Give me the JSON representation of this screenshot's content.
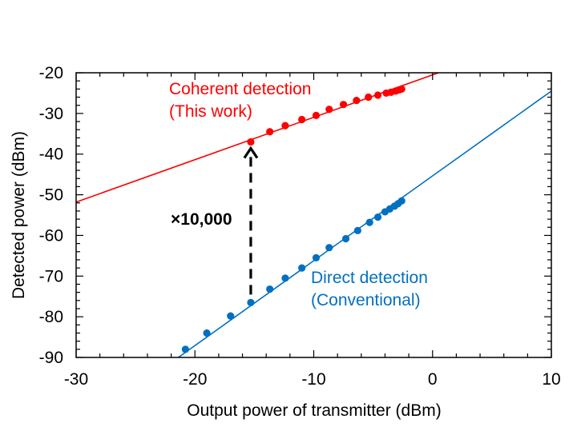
{
  "chart_data": {
    "type": "scatter",
    "xlabel": "Output power of transmitter (dBm)",
    "ylabel": "Detected power (dBm)",
    "xlim": [
      -30,
      10
    ],
    "ylim": [
      -90,
      -20
    ],
    "xticks": [
      -30,
      -20,
      -10,
      0,
      10
    ],
    "yticks": [
      -20,
      -30,
      -40,
      -50,
      -60,
      -70,
      -80,
      -90
    ],
    "grid": false,
    "series": [
      {
        "label_lines": [
          "Coherent detection",
          "(This work)"
        ],
        "color": "#ff0000",
        "fit_line": {
          "x": [
            -30,
            0.5
          ],
          "y": [
            -51.8,
            -20
          ]
        },
        "points": [
          [
            -15.3,
            -37.0
          ],
          [
            -13.7,
            -34.5
          ],
          [
            -12.4,
            -33.0
          ],
          [
            -11.0,
            -31.5
          ],
          [
            -9.8,
            -30.5
          ],
          [
            -8.7,
            -29.0
          ],
          [
            -7.5,
            -27.8
          ],
          [
            -6.4,
            -26.8
          ],
          [
            -5.4,
            -26.0
          ],
          [
            -4.6,
            -25.5
          ],
          [
            -3.9,
            -25.0
          ],
          [
            -3.5,
            -24.8
          ],
          [
            -3.1,
            -24.5
          ],
          [
            -2.8,
            -24.2
          ],
          [
            -2.6,
            -24.0
          ]
        ]
      },
      {
        "label_lines": [
          "Direct detection",
          "(Conventional)"
        ],
        "color": "#0070c0",
        "fit_line": {
          "x": [
            -21.4,
            10
          ],
          "y": [
            -90,
            -24.5
          ]
        },
        "points": [
          [
            -20.8,
            -88.0
          ],
          [
            -19.0,
            -84.0
          ],
          [
            -17.0,
            -79.8
          ],
          [
            -15.3,
            -76.5
          ],
          [
            -13.7,
            -73.2
          ],
          [
            -12.4,
            -70.5
          ],
          [
            -11.0,
            -68.0
          ],
          [
            -9.8,
            -65.5
          ],
          [
            -8.7,
            -63.0
          ],
          [
            -7.3,
            -60.8
          ],
          [
            -6.3,
            -58.8
          ],
          [
            -5.3,
            -56.8
          ],
          [
            -4.6,
            -55.5
          ],
          [
            -4.0,
            -54.2
          ],
          [
            -3.6,
            -53.5
          ],
          [
            -3.2,
            -52.8
          ],
          [
            -2.9,
            -52.2
          ],
          [
            -2.6,
            -51.5
          ]
        ]
      }
    ],
    "annotation": {
      "text": "×10,000",
      "arrow_x": -15.3,
      "arrow_from_y": -76.5,
      "arrow_to_y": -37.0
    }
  }
}
